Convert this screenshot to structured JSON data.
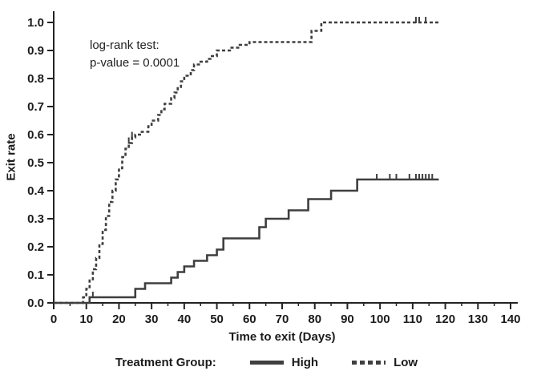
{
  "annotation": {
    "line1": "log-rank test:",
    "line2": "p-value = 0.0001"
  },
  "axes": {
    "x_title": "Time to exit (Days)",
    "y_title": "Exit rate"
  },
  "legend": {
    "label": "Treatment Group:",
    "items": [
      {
        "name": "High",
        "style": "solid"
      },
      {
        "name": "Low",
        "style": "dashed"
      }
    ]
  },
  "colors": {
    "line": "#3f3f3f",
    "axis": "#222222",
    "text": "#1b1b1b"
  },
  "chart_data": {
    "type": "line",
    "subtype": "kaplan-meier-step",
    "title": "",
    "xlabel": "Time to exit (Days)",
    "ylabel": "Exit rate",
    "xlim": [
      0,
      140
    ],
    "ylim": [
      0,
      1.0
    ],
    "grid": false,
    "legend_position": "bottom",
    "legend_label": "Treatment Group:",
    "annotation": "log-rank test: p-value = 0.0001",
    "x_ticks": [
      0,
      10,
      20,
      30,
      40,
      50,
      60,
      70,
      80,
      90,
      100,
      110,
      120,
      130,
      140
    ],
    "x_tick_labels": [
      "0",
      "10",
      "20",
      "30",
      "40",
      "50",
      "60",
      "70",
      "80",
      "90",
      "100",
      "110",
      "120",
      "130",
      "140"
    ],
    "x_minor_ticks": [
      5,
      15,
      25,
      35,
      45,
      55,
      65,
      75,
      85,
      95,
      105,
      115,
      125,
      135
    ],
    "y_ticks": [
      0,
      0.1,
      0.2,
      0.3,
      0.4,
      0.5,
      0.6,
      0.7,
      0.8,
      0.9,
      1.0
    ],
    "y_tick_labels": [
      "0.0",
      "0.1",
      "0.2",
      "0.3",
      "0.4",
      "0.5",
      "0.6",
      "0.7",
      "0.8",
      "0.9",
      "1.0"
    ],
    "series": [
      {
        "name": "High",
        "line_style": "solid",
        "color": "#3f3f3f",
        "steps": [
          [
            0,
            0
          ],
          [
            11,
            0.02
          ],
          [
            25,
            0.05
          ],
          [
            28,
            0.07
          ],
          [
            36,
            0.09
          ],
          [
            38,
            0.11
          ],
          [
            40,
            0.13
          ],
          [
            43,
            0.15
          ],
          [
            47,
            0.17
          ],
          [
            50,
            0.19
          ],
          [
            52,
            0.23
          ],
          [
            63,
            0.27
          ],
          [
            65,
            0.3
          ],
          [
            72,
            0.33
          ],
          [
            78,
            0.37
          ],
          [
            85,
            0.4
          ],
          [
            93,
            0.44
          ],
          [
            118,
            0.44
          ]
        ],
        "censor_times": [
          [
            12,
            0.02
          ],
          [
            99,
            0.44
          ],
          [
            103,
            0.44
          ],
          [
            105,
            0.44
          ],
          [
            109,
            0.44
          ],
          [
            111,
            0.44
          ],
          [
            112,
            0.44
          ],
          [
            113,
            0.44
          ],
          [
            114,
            0.44
          ],
          [
            115,
            0.44
          ],
          [
            116,
            0.44
          ]
        ]
      },
      {
        "name": "Low",
        "line_style": "dashed",
        "color": "#3f3f3f",
        "steps": [
          [
            0,
            0
          ],
          [
            9,
            0.02
          ],
          [
            10,
            0.05
          ],
          [
            11,
            0.08
          ],
          [
            12,
            0.12
          ],
          [
            13,
            0.16
          ],
          [
            14,
            0.21
          ],
          [
            15,
            0.26
          ],
          [
            16,
            0.31
          ],
          [
            17,
            0.36
          ],
          [
            18,
            0.4
          ],
          [
            19,
            0.44
          ],
          [
            20,
            0.48
          ],
          [
            21,
            0.52
          ],
          [
            22,
            0.55
          ],
          [
            23,
            0.57
          ],
          [
            24,
            0.59
          ],
          [
            25,
            0.6
          ],
          [
            27,
            0.61
          ],
          [
            29,
            0.63
          ],
          [
            30,
            0.65
          ],
          [
            32,
            0.67
          ],
          [
            33,
            0.69
          ],
          [
            34,
            0.71
          ],
          [
            36,
            0.73
          ],
          [
            37,
            0.75
          ],
          [
            38,
            0.77
          ],
          [
            39,
            0.79
          ],
          [
            40,
            0.81
          ],
          [
            42,
            0.83
          ],
          [
            43,
            0.85
          ],
          [
            45,
            0.86
          ],
          [
            47,
            0.87
          ],
          [
            48,
            0.88
          ],
          [
            50,
            0.9
          ],
          [
            54,
            0.91
          ],
          [
            57,
            0.92
          ],
          [
            60,
            0.93
          ],
          [
            79,
            0.97
          ],
          [
            82,
            1.0
          ],
          [
            118,
            1.0
          ]
        ],
        "censor_times": [
          [
            23,
            0.57
          ],
          [
            24,
            0.59
          ],
          [
            111,
            1.0
          ],
          [
            112,
            1.0
          ],
          [
            114,
            1.0
          ]
        ]
      }
    ]
  }
}
